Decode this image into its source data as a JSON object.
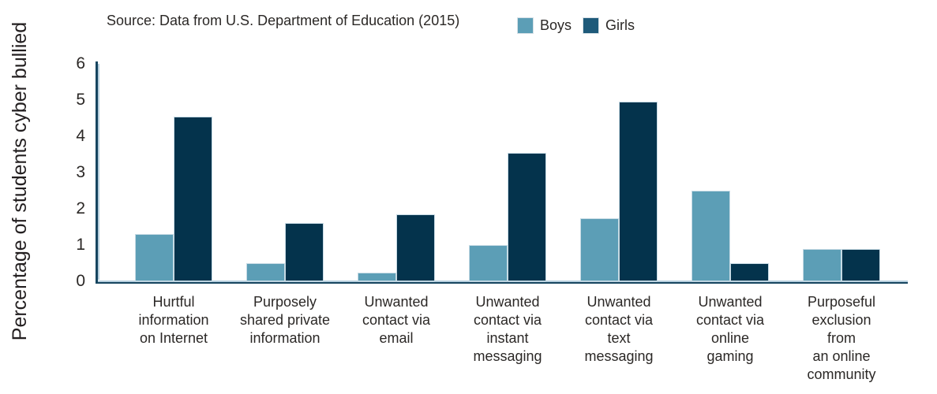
{
  "header": {
    "source_text": "Source: Data from U.S. Department of Education (2015)"
  },
  "legend": {
    "position": "top",
    "items": [
      {
        "label": "Boys",
        "color": "#5c9eb6"
      },
      {
        "label": "Girls",
        "color": "#1e5a7a"
      }
    ]
  },
  "colors": {
    "boys_bar": "#5c9eb6",
    "girls_bar": "#04334c",
    "bar_border": "#c6dae4",
    "axis_dark": "#16455f",
    "axis_light": "#b5cedd",
    "text": "#231f20"
  },
  "chart_data": {
    "type": "bar",
    "title": "",
    "subtitle": "Source: Data from U.S. Department of Education (2015)",
    "xlabel": "",
    "ylabel": "Percentage of students cyber bullied",
    "ylim": [
      0,
      6
    ],
    "yticks": [
      0,
      1,
      2,
      3,
      4,
      5,
      6
    ],
    "grid": false,
    "legend_position": "top",
    "categories": [
      "Hurtful information on Internet",
      "Purposely shared private information",
      "Unwanted contact via email",
      "Unwanted contact via instant messaging",
      "Unwanted contact via text messaging",
      "Unwanted contact via online gaming",
      "Purposeful exclusion from an online community"
    ],
    "category_lines": [
      [
        "Hurtful",
        "information",
        "on Internet"
      ],
      [
        "Purposely",
        "shared private",
        "information"
      ],
      [
        "Unwanted",
        "contact via",
        "email"
      ],
      [
        "Unwanted",
        "contact via",
        "instant",
        "messaging"
      ],
      [
        "Unwanted",
        "contact via",
        "text",
        "messaging"
      ],
      [
        "Unwanted",
        "contact via",
        "online",
        "gaming"
      ],
      [
        "Purposeful",
        "exclusion",
        "from",
        "an online",
        "community"
      ]
    ],
    "series": [
      {
        "name": "Boys",
        "color": "#5c9eb6",
        "values": [
          1.3,
          0.5,
          0.25,
          1.0,
          1.75,
          2.5,
          0.9
        ]
      },
      {
        "name": "Girls",
        "color": "#04334c",
        "values": [
          4.55,
          1.6,
          1.85,
          3.55,
          4.95,
          0.5,
          0.9
        ]
      }
    ]
  }
}
